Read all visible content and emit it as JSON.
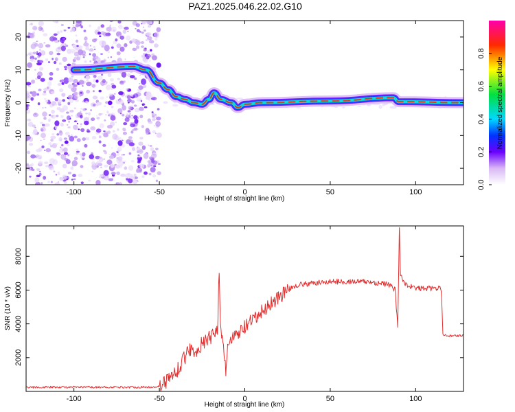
{
  "title": "PAZ1.2025.046.22.02.G10",
  "chart_data": [
    {
      "type": "heatmap",
      "xlabel": "Height of straight line (km)",
      "ylabel": "Frequency (Hz)",
      "xlim": [
        -128,
        128
      ],
      "ylim": [
        -25,
        25
      ],
      "xticks": [
        -100,
        -50,
        0,
        50,
        100
      ],
      "yticks": [
        -20,
        -10,
        0,
        10,
        20
      ],
      "colorbar": {
        "label": "Normalized spectral amplitude",
        "range": [
          0,
          1
        ],
        "ticks": [
          "0.0",
          "0.2",
          "0.4",
          "0.6",
          "0.8"
        ],
        "colormap": "rainbow (white-purple-blue-cyan-green-yellow-red-magenta)"
      },
      "ridge": [
        {
          "x": -100,
          "y": 10
        },
        {
          "x": -65,
          "y": 11
        },
        {
          "x": -58,
          "y": 10
        },
        {
          "x": -50,
          "y": 6
        },
        {
          "x": -45,
          "y": 4
        },
        {
          "x": -40,
          "y": 1.8
        },
        {
          "x": -35,
          "y": 1
        },
        {
          "x": -30,
          "y": 0
        },
        {
          "x": -25,
          "y": -0.5
        },
        {
          "x": -21,
          "y": 1
        },
        {
          "x": -18,
          "y": 3
        },
        {
          "x": -14,
          "y": 1
        },
        {
          "x": -8,
          "y": 0
        },
        {
          "x": -4,
          "y": -1.5
        },
        {
          "x": 0,
          "y": -0.5
        },
        {
          "x": 10,
          "y": 0
        },
        {
          "x": 50,
          "y": 0.5
        },
        {
          "x": 87,
          "y": 1.5
        },
        {
          "x": 90,
          "y": 0.3
        },
        {
          "x": 128,
          "y": 0
        }
      ]
    },
    {
      "type": "line",
      "xlabel": "Height of straight line (km)",
      "ylabel": "SNR (10 * v/v)",
      "xlim": [
        -128,
        128
      ],
      "ylim": [
        0,
        9800
      ],
      "xticks": [
        -100,
        -50,
        0,
        50,
        100
      ],
      "yticks": [
        2000,
        4000,
        6000,
        8000
      ],
      "color": "#e32b2b",
      "series": [
        {
          "x": [
            -128,
            -110,
            -90,
            -70,
            -55,
            -50,
            -45,
            -40,
            -35,
            -33,
            -30,
            -25,
            -20,
            -16,
            -15,
            -14,
            -11,
            -10,
            -5,
            0,
            5,
            10,
            15,
            20,
            25,
            30,
            40,
            50,
            60,
            70,
            80,
            85,
            88,
            89.5,
            90.5,
            91,
            93,
            95,
            100,
            110,
            115,
            116,
            118,
            128
          ],
          "y": [
            250,
            250,
            250,
            250,
            250,
            300,
            700,
            1200,
            2000,
            2600,
            2300,
            2800,
            3200,
            3800,
            7000,
            3500,
            1200,
            2800,
            3300,
            3800,
            4200,
            4700,
            5200,
            5600,
            6000,
            6300,
            6400,
            6500,
            6500,
            6500,
            6400,
            6300,
            6000,
            3800,
            9700,
            7000,
            6500,
            6300,
            6100,
            6100,
            6100,
            3300,
            3300,
            3300
          ]
        }
      ]
    }
  ]
}
